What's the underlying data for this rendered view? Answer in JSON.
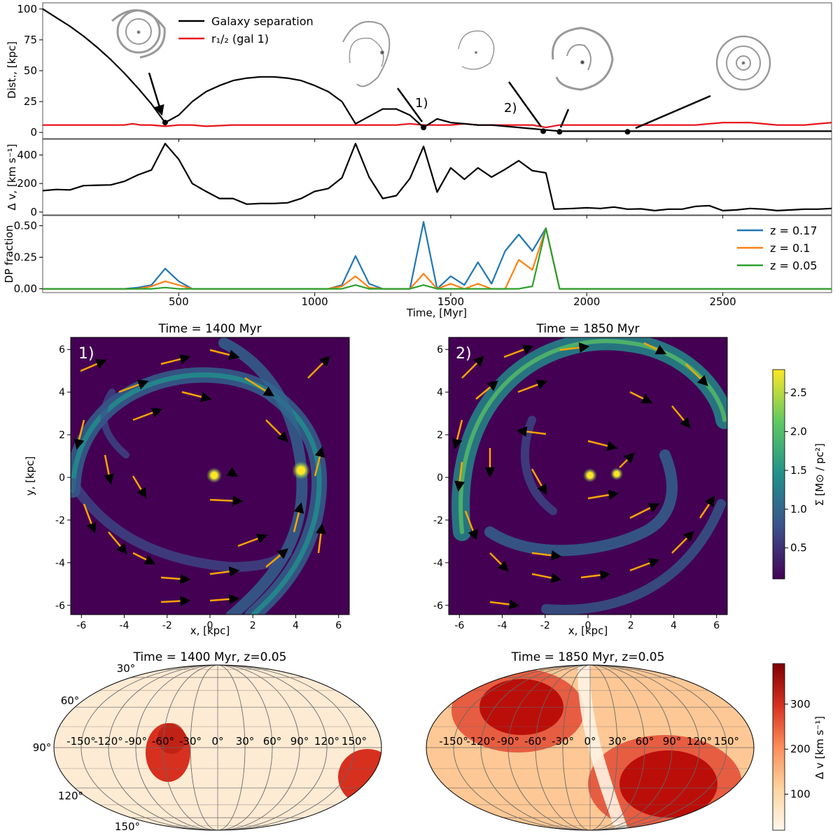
{
  "top": {
    "panel1": {
      "ylabel": "Dist., [kpc]",
      "yticks": [
        0,
        25,
        50,
        75,
        100
      ],
      "legend": [
        {
          "label": "Galaxy separation",
          "color": "#000000"
        },
        {
          "label": "r₁/₂ (gal 1)",
          "color": "#e8141c"
        }
      ],
      "annotations": [
        "1)",
        "2)"
      ]
    },
    "panel2": {
      "ylabel": "Δ v, [km s⁻¹]",
      "yticks": [
        0,
        200,
        400
      ]
    },
    "panel3": {
      "ylabel": "DP fraction",
      "yticks": [
        "0.00",
        "0.25",
        "0.50"
      ],
      "legend": [
        {
          "label": "z = 0.17",
          "color": "#1f77b4"
        },
        {
          "label": "z = 0.1",
          "color": "#ff7f0e"
        },
        {
          "label": "z = 0.05",
          "color": "#2ca02c"
        }
      ]
    },
    "xlabel": "Time, [Myr]",
    "xticks": [
      500,
      1000,
      1500,
      2000,
      2500
    ],
    "xlim": [
      0,
      2900
    ]
  },
  "maps": {
    "left_title": "Time = 1400 Myr",
    "right_title": "Time = 1850 Myr",
    "left_label": "1)",
    "right_label": "2)",
    "xlabel": "x, [kpc]",
    "ylabel": "y, [kpc]",
    "ticks": [
      -6,
      -4,
      -2,
      0,
      2,
      4,
      6
    ],
    "colorbar_label": "Σ [M⊙ / pc²]",
    "colorbar_ticks": [
      "0.5",
      "1.0",
      "1.5",
      "2.0",
      "2.5"
    ]
  },
  "sky": {
    "left_title": "Time = 1400 Myr, z=0.05",
    "right_title": "Time = 1850 Myr, z=0.05",
    "lon_labels": [
      "-150°",
      "-120°",
      "-90°",
      "-60°",
      "-30°",
      "0°",
      "30°",
      "60°",
      "90°",
      "120°",
      "150°"
    ],
    "lat_labels_left": [
      "30°",
      "60°",
      "90°",
      "120°",
      "150°"
    ],
    "colorbar_label": "Δ v [km s⁻¹]",
    "colorbar_ticks": [
      "100",
      "200",
      "300"
    ]
  },
  "chart_data": [
    {
      "type": "line",
      "title": "",
      "xlabel": "",
      "ylabel": "Dist., [kpc]",
      "xlim": [
        0,
        2900
      ],
      "ylim": [
        -5,
        105
      ],
      "series": [
        {
          "name": "Galaxy separation",
          "x": [
            0,
            50,
            100,
            150,
            200,
            250,
            300,
            350,
            400,
            450,
            500,
            550,
            600,
            650,
            700,
            750,
            800,
            850,
            900,
            950,
            1000,
            1050,
            1100,
            1150,
            1200,
            1250,
            1300,
            1350,
            1400,
            1450,
            1500,
            1550,
            1600,
            1650,
            1700,
            1750,
            1800,
            1850,
            1900,
            1950,
            2000,
            2100,
            2200,
            2300,
            2400,
            2500,
            2600,
            2700,
            2800,
            2900
          ],
          "y": [
            100,
            93,
            86,
            78,
            69,
            59,
            48,
            36,
            23,
            8,
            14,
            25,
            33,
            38,
            42,
            44,
            45,
            45,
            44,
            42,
            38,
            33,
            25,
            7,
            13,
            19,
            19,
            14,
            4,
            11,
            8,
            7,
            6,
            6,
            5,
            4,
            3,
            2,
            1,
            1,
            1,
            1,
            1,
            1,
            1,
            1,
            1,
            1,
            1,
            1
          ]
        },
        {
          "name": "r1/2 (gal 1)",
          "x": [
            0,
            100,
            200,
            300,
            330,
            360,
            400,
            450,
            500,
            550,
            600,
            700,
            800,
            900,
            1000,
            1100,
            1200,
            1300,
            1350,
            1400,
            1450,
            1500,
            1550,
            1600,
            1700,
            1800,
            1850,
            1900,
            2000,
            2100,
            2200,
            2300,
            2400,
            2500,
            2550,
            2600,
            2700,
            2800,
            2900
          ],
          "y": [
            6,
            6,
            6,
            6,
            7,
            6,
            6,
            5,
            6,
            6,
            5,
            6,
            6,
            6,
            6,
            6,
            6,
            6,
            7,
            6,
            6,
            6,
            7,
            6,
            6,
            6,
            4,
            6,
            6,
            6,
            6,
            6,
            6,
            8,
            8,
            8,
            6,
            6,
            8
          ]
        }
      ],
      "markers": [
        {
          "x": 450,
          "y": 8
        },
        {
          "x": 1400,
          "y": 4
        },
        {
          "x": 1840,
          "y": 1
        },
        {
          "x": 1900,
          "y": 0.5
        },
        {
          "x": 2150,
          "y": 0.5
        }
      ]
    },
    {
      "type": "line",
      "ylabel": "Δ v, [km s⁻¹]",
      "xlim": [
        0,
        2900
      ],
      "ylim": [
        -20,
        510
      ],
      "series": [
        {
          "name": "Δ v",
          "x": [
            0,
            50,
            100,
            150,
            200,
            250,
            300,
            350,
            400,
            450,
            500,
            550,
            600,
            650,
            700,
            750,
            800,
            850,
            900,
            950,
            1000,
            1050,
            1100,
            1150,
            1200,
            1250,
            1300,
            1350,
            1400,
            1450,
            1500,
            1550,
            1600,
            1650,
            1700,
            1750,
            1800,
            1850,
            1880,
            1950,
            2000,
            2050,
            2100,
            2150,
            2200,
            2250,
            2300,
            2350,
            2400,
            2450,
            2500,
            2550,
            2600,
            2650,
            2700,
            2750,
            2800,
            2850,
            2900
          ],
          "y": [
            150,
            158,
            155,
            185,
            188,
            190,
            215,
            260,
            295,
            480,
            370,
            200,
            145,
            95,
            95,
            55,
            60,
            60,
            65,
            95,
            145,
            165,
            240,
            480,
            245,
            95,
            115,
            235,
            460,
            140,
            310,
            230,
            310,
            245,
            300,
            360,
            290,
            275,
            20,
            25,
            30,
            25,
            35,
            20,
            22,
            10,
            20,
            20,
            40,
            45,
            10,
            15,
            25,
            20,
            10,
            15,
            20,
            20,
            25
          ]
        }
      ]
    },
    {
      "type": "line",
      "ylabel": "DP fraction",
      "xlabel": "Time, [Myr]",
      "xlim": [
        0,
        2900
      ],
      "ylim": [
        -0.03,
        0.58
      ],
      "series": [
        {
          "name": "z = 0.17",
          "x": [
            0,
            300,
            350,
            400,
            450,
            500,
            550,
            1050,
            1100,
            1150,
            1200,
            1250,
            1350,
            1400,
            1450,
            1500,
            1550,
            1600,
            1650,
            1700,
            1750,
            1800,
            1850,
            1900,
            2900
          ],
          "y": [
            0,
            0,
            0.01,
            0.03,
            0.16,
            0.06,
            0,
            0,
            0.03,
            0.26,
            0.04,
            0,
            0,
            0.53,
            0,
            0.1,
            0.03,
            0.21,
            0.04,
            0.3,
            0.43,
            0.3,
            0.48,
            0,
            0
          ]
        },
        {
          "name": "z = 0.1",
          "x": [
            0,
            350,
            400,
            450,
            500,
            550,
            1050,
            1100,
            1150,
            1200,
            1250,
            1350,
            1400,
            1450,
            1500,
            1550,
            1600,
            1650,
            1700,
            1750,
            1800,
            1850,
            1900,
            2900
          ],
          "y": [
            0,
            0,
            0.02,
            0.06,
            0.03,
            0,
            0,
            0.02,
            0.1,
            0.01,
            0,
            0,
            0.12,
            0,
            0.04,
            0,
            0.04,
            0,
            0,
            0.23,
            0.15,
            0.48,
            0,
            0
          ]
        },
        {
          "name": "z = 0.05",
          "x": [
            0,
            400,
            450,
            500,
            1100,
            1150,
            1200,
            1350,
            1400,
            1450,
            1750,
            1800,
            1850,
            1900,
            2900
          ],
          "y": [
            0,
            0,
            0.01,
            0,
            0,
            0.03,
            0,
            0,
            0.03,
            0,
            0,
            0.02,
            0.48,
            0,
            0
          ]
        }
      ]
    },
    {
      "type": "heatmap",
      "title": "Time = 1400 Myr",
      "xlabel": "x, [kpc]",
      "ylabel": "y, [kpc]",
      "xlim": [
        -6.5,
        6.5
      ],
      "ylim": [
        -6.5,
        6.5
      ],
      "point_sources": [
        {
          "x": 0.4,
          "y": 0.0
        },
        {
          "x": 4.3,
          "y": 0.2
        }
      ]
    },
    {
      "type": "heatmap",
      "title": "Time = 1850 Myr",
      "xlabel": "x, [kpc]",
      "ylabel": "y, [kpc]",
      "xlim": [
        -6.5,
        6.5
      ],
      "ylim": [
        -6.5,
        6.5
      ],
      "point_sources": [
        {
          "x": 0.0,
          "y": 0.0
        },
        {
          "x": 1.3,
          "y": 0.05
        }
      ],
      "colorbar": {
        "label": "Σ [M⊙ / pc²]",
        "range": [
          0.1,
          2.8
        ]
      }
    },
    {
      "type": "heatmap",
      "title": "Time = 1400 Myr, z=0.05",
      "projection": "mollweide"
    },
    {
      "type": "heatmap",
      "title": "Time = 1850 Myr, z=0.05",
      "projection": "mollweide",
      "colorbar": {
        "label": "Δ v [km s⁻¹]",
        "range": [
          20,
          390
        ]
      }
    }
  ]
}
